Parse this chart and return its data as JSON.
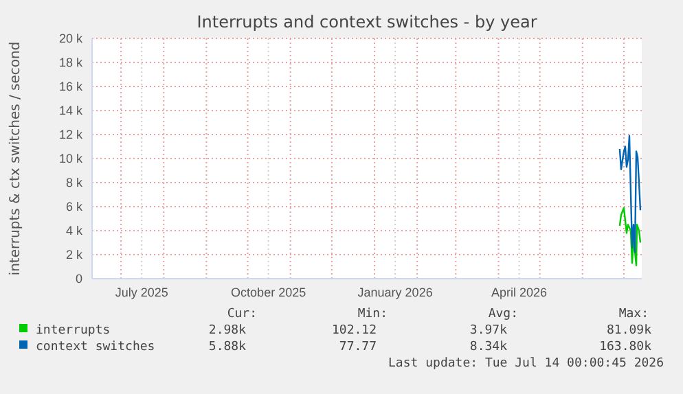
{
  "chart_data": {
    "type": "line",
    "title": "Interrupts and context switches - by year",
    "ylabel": "interrupts & ctx switches / second",
    "xlim": [
      "2025-06-10",
      "2026-07-14"
    ],
    "xticks": [
      {
        "value": "2025-07-01",
        "label": null
      },
      {
        "value": "2025-08-01",
        "label": null
      },
      {
        "value": "2025-09-01",
        "label": null
      },
      {
        "value": "2025-10-01",
        "label": null
      },
      {
        "value": "2025-11-01",
        "label": null
      },
      {
        "value": "2025-12-01",
        "label": null
      },
      {
        "value": "2026-01-01",
        "label": null
      },
      {
        "value": "2026-02-01",
        "label": null
      },
      {
        "value": "2026-03-01",
        "label": null
      },
      {
        "value": "2026-04-01",
        "label": null
      },
      {
        "value": "2026-05-01",
        "label": null
      },
      {
        "value": "2026-06-01",
        "label": null
      },
      {
        "value": "2026-07-01",
        "label": null
      },
      {
        "value": "2025-07-16",
        "label": "July 2025"
      },
      {
        "value": "2025-10-16",
        "label": "October 2025"
      },
      {
        "value": "2026-01-16",
        "label": "January 2026"
      },
      {
        "value": "2026-04-16",
        "label": "April 2026"
      }
    ],
    "ylim": [
      0,
      20000
    ],
    "yticks": [
      0,
      {
        "value": 2000,
        "label": "2 k"
      },
      {
        "value": 4000,
        "label": "4 k"
      },
      {
        "value": 6000,
        "label": "6 k"
      },
      {
        "value": 8000,
        "label": "8 k"
      },
      {
        "value": 10000,
        "label": "10 k"
      },
      {
        "value": 12000,
        "label": "12 k"
      },
      {
        "value": 14000,
        "label": "14 k"
      },
      {
        "value": 16000,
        "label": "16 k"
      },
      {
        "value": 18000,
        "label": "18 k"
      },
      {
        "value": 20000,
        "label": "20 k"
      }
    ],
    "grid": true,
    "legend": "bottom",
    "marker": "none",
    "line_style": "solid",
    "series": [
      {
        "name": "interrupts",
        "color": "#00cc00",
        "x": [
          "2026-06-28",
          "2026-06-29",
          "2026-07-01",
          "2026-07-03",
          "2026-07-04",
          "2026-07-06",
          "2026-07-07",
          "2026-07-08",
          "2026-07-10",
          "2026-07-10T12:00",
          "2026-07-12",
          "2026-07-13"
        ],
        "values": [
          4400,
          5300,
          5900,
          3800,
          4500,
          4000,
          1300,
          3400,
          1100,
          4500,
          4000,
          3000
        ]
      },
      {
        "name": "context switches",
        "color": "#0066b3",
        "x": [
          "2026-06-28",
          "2026-06-29",
          "2026-07-01",
          "2026-07-02",
          "2026-07-03",
          "2026-07-04",
          "2026-07-05",
          "2026-07-06",
          "2026-07-07",
          "2026-07-08",
          "2026-07-09",
          "2026-07-10",
          "2026-07-11",
          "2026-07-12",
          "2026-07-13"
        ],
        "values": [
          10800,
          9100,
          10600,
          11000,
          9300,
          9900,
          11900,
          7200,
          2600,
          4500,
          2200,
          10600,
          10100,
          8000,
          5700
        ]
      }
    ],
    "annotations": [
      "Cur:",
      "Min:",
      "Avg:",
      "Max:",
      "2.98k",
      "102.12",
      "3.97k",
      "81.09k",
      "5.88k",
      "77.77",
      "8.34k",
      "163.80k",
      "Last update: Tue Jul 14 00:00:45 2026"
    ]
  }
}
